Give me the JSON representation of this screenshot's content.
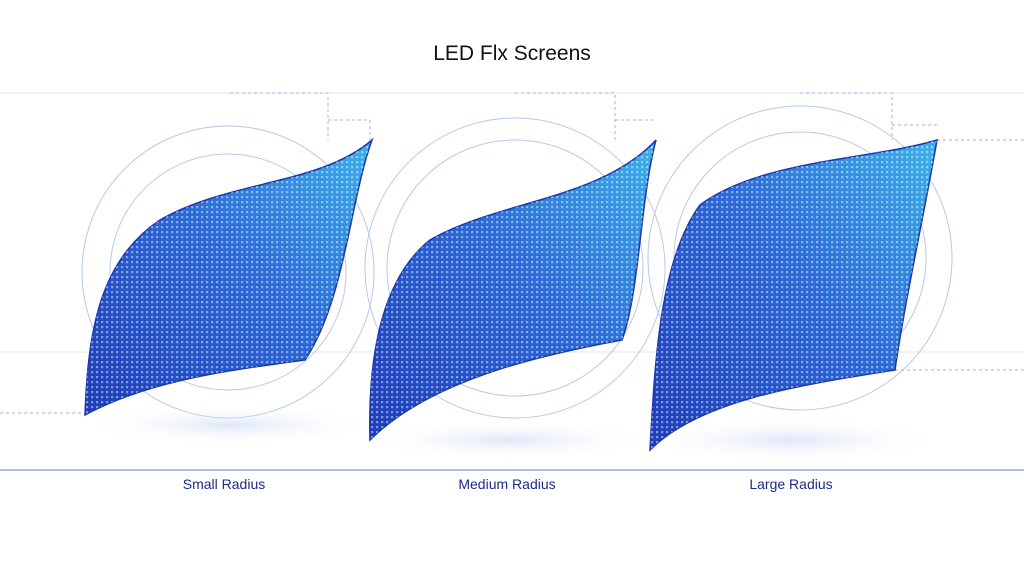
{
  "header": {
    "title": "LED Flx Screens"
  },
  "panels": [
    {
      "label": "Small Radius"
    },
    {
      "label": "Medium Radius"
    },
    {
      "label": "Large Radius"
    }
  ]
}
